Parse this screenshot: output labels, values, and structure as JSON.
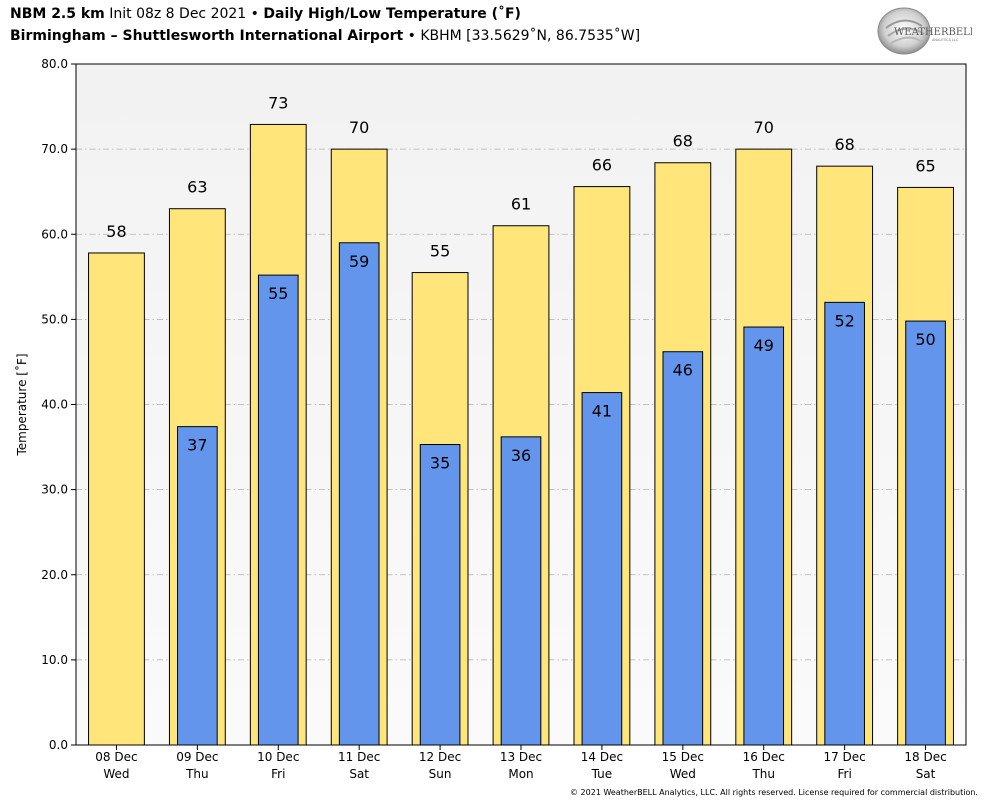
{
  "header": {
    "model": "NBM 2.5 km",
    "init": "Init 08z 8 Dec 2021",
    "bullet": "•",
    "product": "Daily High/Low Temperature (˚F)",
    "station_name": "Birmingham – Shuttlesworth International Airport",
    "station_info": "KBHM [33.5629˚N, 86.7535˚W]"
  },
  "logo": {
    "text_main": "WEATHERBELL",
    "text_sub": "ANALYTICS LLC"
  },
  "copyright": "© 2021 WeatherBELL Analytics, LLC. All rights reserved. License required for commercial distribution.",
  "colors": {
    "high_bar": "#FFE57A",
    "low_bar": "#6495ED",
    "plot_bg_top": "#F2F2F2",
    "plot_bg_bottom": "#FAFAFA",
    "grid": "#B0B0B0"
  },
  "chart_data": {
    "type": "bar",
    "ylabel": "Temperature [˚F]",
    "ylim": [
      0,
      80
    ],
    "yticks": [
      "0.0",
      "10.0",
      "20.0",
      "30.0",
      "40.0",
      "50.0",
      "60.0",
      "70.0",
      "80.0"
    ],
    "grid": "horizontal dash-dot",
    "categories": [
      {
        "date": "08 Dec",
        "day": "Wed"
      },
      {
        "date": "09 Dec",
        "day": "Thu"
      },
      {
        "date": "10 Dec",
        "day": "Fri"
      },
      {
        "date": "11 Dec",
        "day": "Sat"
      },
      {
        "date": "12 Dec",
        "day": "Sun"
      },
      {
        "date": "13 Dec",
        "day": "Mon"
      },
      {
        "date": "14 Dec",
        "day": "Tue"
      },
      {
        "date": "15 Dec",
        "day": "Wed"
      },
      {
        "date": "16 Dec",
        "day": "Thu"
      },
      {
        "date": "17 Dec",
        "day": "Fri"
      },
      {
        "date": "18 Dec",
        "day": "Sat"
      }
    ],
    "series": [
      {
        "key": "high",
        "values": [
          57.8,
          63.0,
          72.9,
          70.0,
          55.5,
          61.0,
          65.6,
          68.4,
          70.0,
          68.0,
          65.5
        ],
        "labels": [
          "58",
          "63",
          "73",
          "70",
          "55",
          "61",
          "66",
          "68",
          "70",
          "68",
          "65"
        ]
      },
      {
        "key": "low",
        "values": [
          null,
          37.4,
          55.2,
          59.0,
          35.3,
          36.2,
          41.4,
          46.2,
          49.1,
          52.0,
          49.8
        ],
        "labels": [
          null,
          "37",
          "55",
          "59",
          "35",
          "36",
          "41",
          "46",
          "49",
          "52",
          "50"
        ]
      }
    ]
  }
}
